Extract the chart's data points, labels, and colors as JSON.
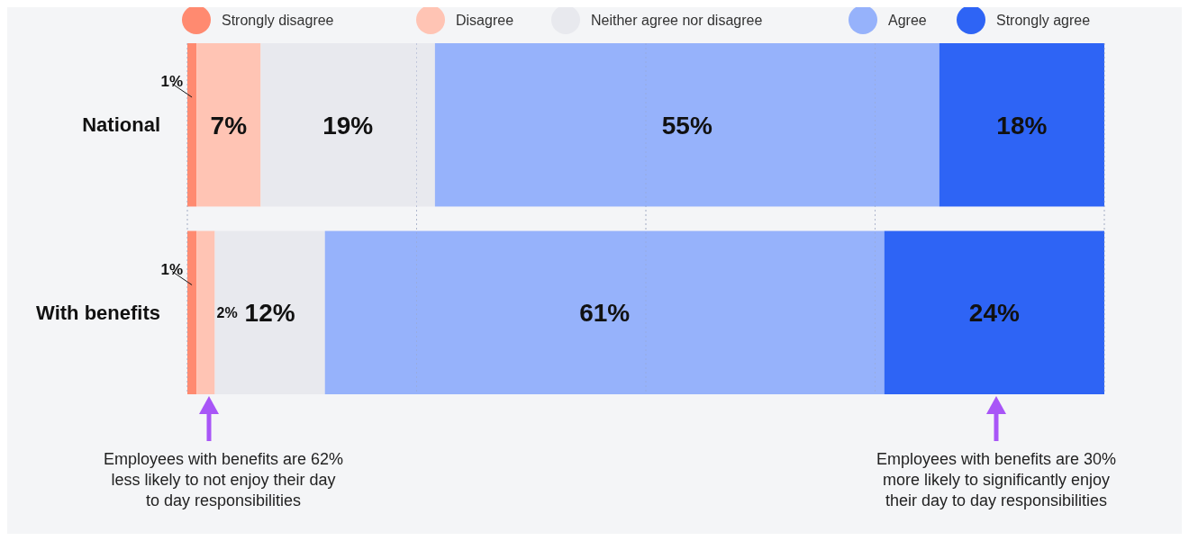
{
  "chart_data": {
    "type": "bar",
    "orientation": "horizontal",
    "stacked": true,
    "categories": [
      "National",
      "With benefits"
    ],
    "series": [
      {
        "name": "Strongly disagree",
        "color": "#ff8a70",
        "values": [
          1,
          1
        ],
        "value_labels": [
          "1%",
          "1%"
        ]
      },
      {
        "name": "Disagree",
        "color": "#ffc4b4",
        "values": [
          7,
          2
        ],
        "value_labels": [
          "7%",
          "2%"
        ]
      },
      {
        "name": "Neither agree nor disagree",
        "color": "#e8e9ee",
        "values": [
          19,
          12
        ],
        "value_labels": [
          "19%",
          "12%"
        ]
      },
      {
        "name": "Agree",
        "color": "#96b2fb",
        "values": [
          55,
          61
        ],
        "value_labels": [
          "55%",
          "61%"
        ]
      },
      {
        "name": "Strongly agree",
        "color": "#2e64f5",
        "values": [
          18,
          24
        ],
        "value_labels": [
          "18%",
          "24%"
        ]
      }
    ],
    "xlim": [
      0,
      100
    ],
    "xticks": [
      {
        "value": 0,
        "label": null
      },
      {
        "value": 25,
        "label": null
      },
      {
        "value": 50,
        "label": null
      },
      {
        "value": 75,
        "label": null
      },
      {
        "value": 100,
        "label": null
      }
    ],
    "grid": "x",
    "legend": "top",
    "tick_labels": "y",
    "annotations": [
      "Employees with benefits are 62% less likely to not enjoy their day to day responsibilities",
      "Employees with benefits are 30% more likely to significantly enjoy their day to day responsibilities"
    ]
  }
}
